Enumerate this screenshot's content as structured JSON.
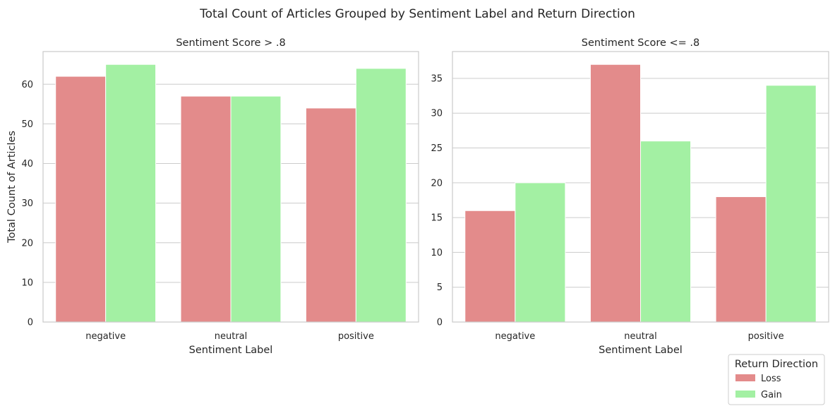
{
  "figure": {
    "title": "Total Count of Articles Grouped by Sentiment Label and Return Direction"
  },
  "legend": {
    "title": "Return Direction",
    "placement": "bottom-right",
    "entries": [
      "Loss",
      "Gain"
    ]
  },
  "colors": {
    "Loss": "#e38b8b",
    "Gain": "#a3f0a3",
    "grid": "#cccccc",
    "frame": "#cccccc"
  },
  "chart_data": [
    {
      "type": "bar",
      "title": "Sentiment Score > .8",
      "xlabel": "Sentiment Label",
      "ylabel": "Total Count of Articles",
      "categories": [
        "negative",
        "neutral",
        "positive"
      ],
      "series": [
        {
          "name": "Loss",
          "values": [
            62,
            57,
            54
          ]
        },
        {
          "name": "Gain",
          "values": [
            65,
            57,
            64
          ]
        }
      ],
      "ylim": [
        0,
        68.25
      ],
      "yticks": [
        0,
        10,
        20,
        30,
        40,
        50,
        60
      ],
      "grid": true
    },
    {
      "type": "bar",
      "title": "Sentiment Score <= .8",
      "xlabel": "Sentiment Label",
      "ylabel": "",
      "categories": [
        "negative",
        "neutral",
        "positive"
      ],
      "series": [
        {
          "name": "Loss",
          "values": [
            16,
            37,
            18
          ]
        },
        {
          "name": "Gain",
          "values": [
            20,
            26,
            34
          ]
        }
      ],
      "ylim": [
        0,
        38.85
      ],
      "yticks": [
        0,
        5,
        10,
        15,
        20,
        25,
        30,
        35
      ],
      "grid": true
    }
  ]
}
